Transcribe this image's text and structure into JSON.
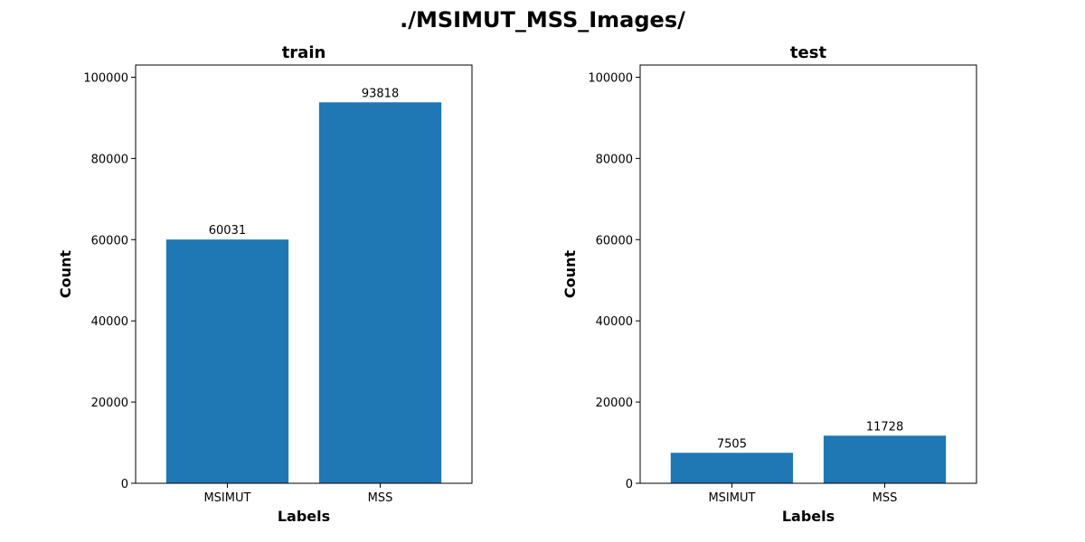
{
  "figure": {
    "title": "./MSIMUT_MSS_Images/"
  },
  "chart_data": [
    {
      "type": "bar",
      "title": "train",
      "xlabel": "Labels",
      "ylabel": "Count",
      "categories": [
        "MSIMUT",
        "MSS"
      ],
      "values": [
        60031,
        93818
      ],
      "data_labels": [
        "60031",
        "93818"
      ],
      "ylim": [
        0,
        103000
      ],
      "yticks": [
        0,
        20000,
        40000,
        60000,
        80000,
        100000
      ],
      "ytick_labels": [
        "0",
        "20000",
        "40000",
        "60000",
        "80000",
        "100000"
      ],
      "grid": false,
      "bar_color": "#1f77b4"
    },
    {
      "type": "bar",
      "title": "test",
      "xlabel": "Labels",
      "ylabel": "Count",
      "categories": [
        "MSIMUT",
        "MSS"
      ],
      "values": [
        7505,
        11728
      ],
      "data_labels": [
        "7505",
        "11728"
      ],
      "ylim": [
        0,
        103000
      ],
      "yticks": [
        0,
        20000,
        40000,
        60000,
        80000,
        100000
      ],
      "ytick_labels": [
        "0",
        "20000",
        "40000",
        "60000",
        "80000",
        "100000"
      ],
      "grid": false,
      "bar_color": "#1f77b4"
    }
  ]
}
